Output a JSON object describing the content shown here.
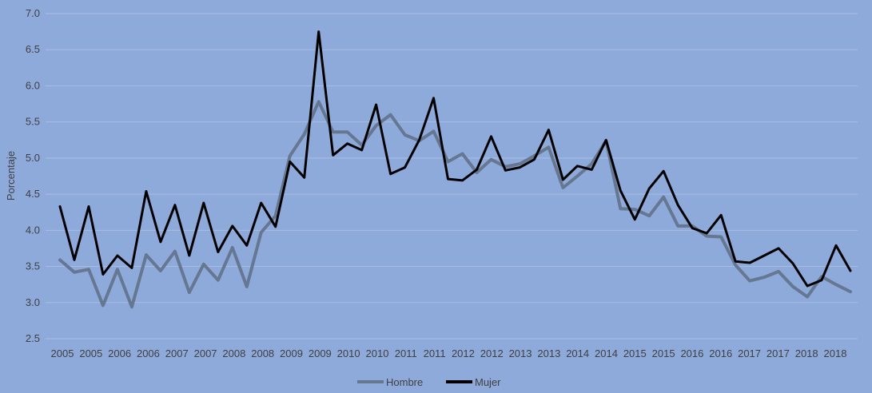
{
  "chart_data": {
    "type": "line",
    "title": "",
    "xlabel": "",
    "ylabel": "Porcentaje",
    "ylim": [
      2.5,
      7.0
    ],
    "yticks": [
      "2.5",
      "3.0",
      "3.5",
      "4.0",
      "4.5",
      "5.0",
      "5.5",
      "6.0",
      "6.5",
      "7.0"
    ],
    "grid": true,
    "legend_position": "bottom",
    "x_tick_labels": [
      "2005",
      "2005",
      "2006",
      "2006",
      "2007",
      "2007",
      "2008",
      "2008",
      "2009",
      "2009",
      "2010",
      "2010",
      "2011",
      "2011",
      "2012",
      "2012",
      "2013",
      "2013",
      "2014",
      "2014",
      "2015",
      "2015",
      "2016",
      "2016",
      "2017",
      "2017",
      "2018",
      "2018"
    ],
    "series": [
      {
        "name": "Hombre",
        "color": "#667791",
        "values": [
          3.59,
          3.42,
          3.46,
          2.96,
          3.46,
          2.94,
          3.66,
          3.44,
          3.71,
          3.14,
          3.53,
          3.31,
          3.76,
          3.22,
          3.97,
          4.2,
          5.03,
          5.33,
          5.78,
          5.36,
          5.36,
          5.18,
          5.45,
          5.6,
          5.32,
          5.24,
          5.37,
          4.95,
          5.06,
          4.8,
          4.98,
          4.88,
          4.92,
          5.03,
          5.15,
          4.59,
          4.75,
          4.92,
          5.24,
          4.3,
          4.29,
          4.2,
          4.46,
          4.06,
          4.06,
          3.92,
          3.91,
          3.52,
          3.3,
          3.35,
          3.43,
          3.22,
          3.08,
          3.36,
          3.25,
          3.15
        ]
      },
      {
        "name": "Mujer",
        "color": "#000000",
        "values": [
          4.33,
          3.59,
          4.33,
          3.39,
          3.65,
          3.48,
          4.54,
          3.84,
          4.35,
          3.65,
          4.38,
          3.7,
          4.06,
          3.79,
          4.38,
          4.05,
          4.95,
          4.73,
          6.75,
          5.04,
          5.2,
          5.11,
          5.74,
          4.78,
          4.87,
          5.25,
          5.83,
          4.71,
          4.69,
          4.84,
          5.3,
          4.83,
          4.87,
          4.98,
          5.39,
          4.7,
          4.89,
          4.84,
          5.25,
          4.55,
          4.15,
          4.58,
          4.82,
          4.35,
          4.03,
          3.96,
          4.21,
          3.57,
          3.55,
          3.65,
          3.75,
          3.54,
          3.23,
          3.31,
          3.79,
          3.44
        ]
      }
    ]
  }
}
